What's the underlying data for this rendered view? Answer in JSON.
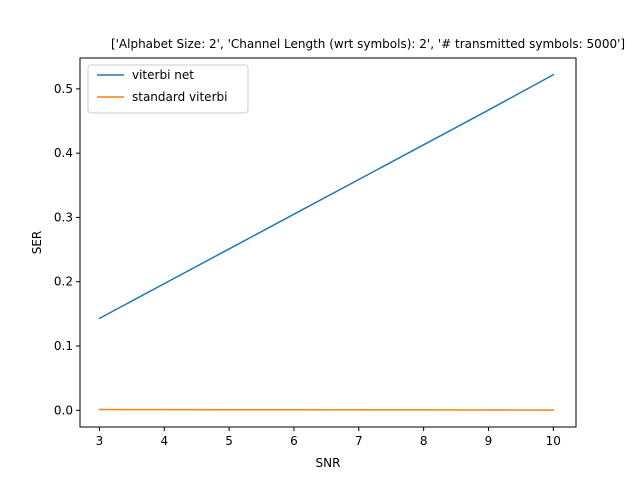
{
  "chart_data": {
    "type": "line",
    "title": "['Alphabet Size: 2', 'Channel Length (wrt symbols): 2', '# transmitted symbols: 5000']",
    "xlabel": "SNR",
    "ylabel": "SER",
    "xlim": [
      2.7,
      10.35
    ],
    "ylim": [
      -0.026,
      0.548
    ],
    "xticks": [
      3,
      4,
      5,
      6,
      7,
      8,
      9,
      10
    ],
    "xtick_labels": [
      "3",
      "4",
      "5",
      "6",
      "7",
      "8",
      "9",
      "10"
    ],
    "yticks": [
      0.0,
      0.1,
      0.2,
      0.3,
      0.4,
      0.5
    ],
    "ytick_labels": [
      "0.0",
      "0.1",
      "0.2",
      "0.3",
      "0.4",
      "0.5"
    ],
    "grid": false,
    "legend_position": "top-left",
    "x": [
      3,
      4,
      5,
      6,
      7,
      8,
      9,
      10
    ],
    "series": [
      {
        "name": "viterbi net",
        "color": "#1f77b4",
        "values": [
          0.143,
          0.197,
          0.251,
          0.305,
          0.359,
          0.413,
          0.467,
          0.522
        ]
      },
      {
        "name": "standard viterbi",
        "color": "#ff7f0e",
        "values": [
          0.0012,
          0.001,
          0.0009,
          0.0008,
          0.0007,
          0.0006,
          0.0005,
          0.0003
        ]
      }
    ]
  }
}
